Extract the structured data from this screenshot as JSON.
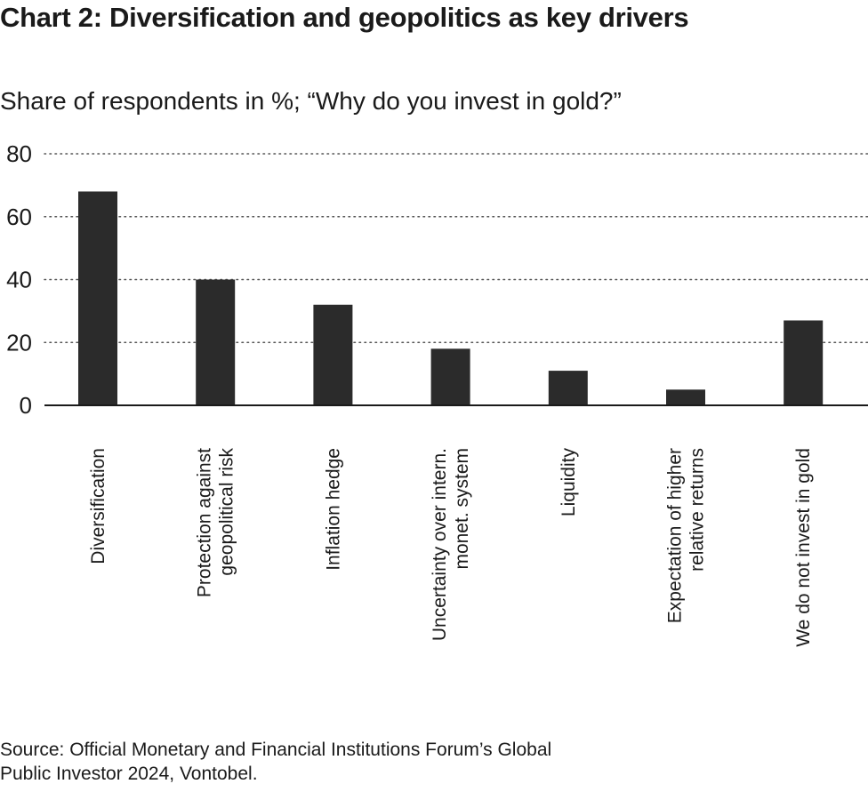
{
  "chart_data": {
    "type": "bar",
    "title": "Chart 2: Diversification and geopolitics as key drivers",
    "subtitle": "Share of respondents in %; “Why do you invest in gold?”",
    "xlabel": "",
    "ylabel": "",
    "ylim": [
      0,
      80
    ],
    "yticks": [
      0,
      20,
      40,
      60,
      80
    ],
    "grid": true,
    "categories": [
      [
        "Diversification"
      ],
      [
        "Protection against",
        "geopolitical risk"
      ],
      [
        "Inflation hedge"
      ],
      [
        "Uncertainty over intern.",
        "monet. system"
      ],
      [
        "Liquidity"
      ],
      [
        "Expectation of higher",
        "relative returns"
      ],
      [
        "We do not invest in gold"
      ]
    ],
    "values": [
      68,
      40,
      32,
      18,
      11,
      5,
      27
    ],
    "colors": {
      "bar": "#2b2b2b",
      "grid": "#555555",
      "axis": "#1a1a1a"
    }
  },
  "source": {
    "line1": "Source: Official Monetary and Financial Institutions Forum’s Global",
    "line2": "Public Investor 2024, Vontobel."
  }
}
